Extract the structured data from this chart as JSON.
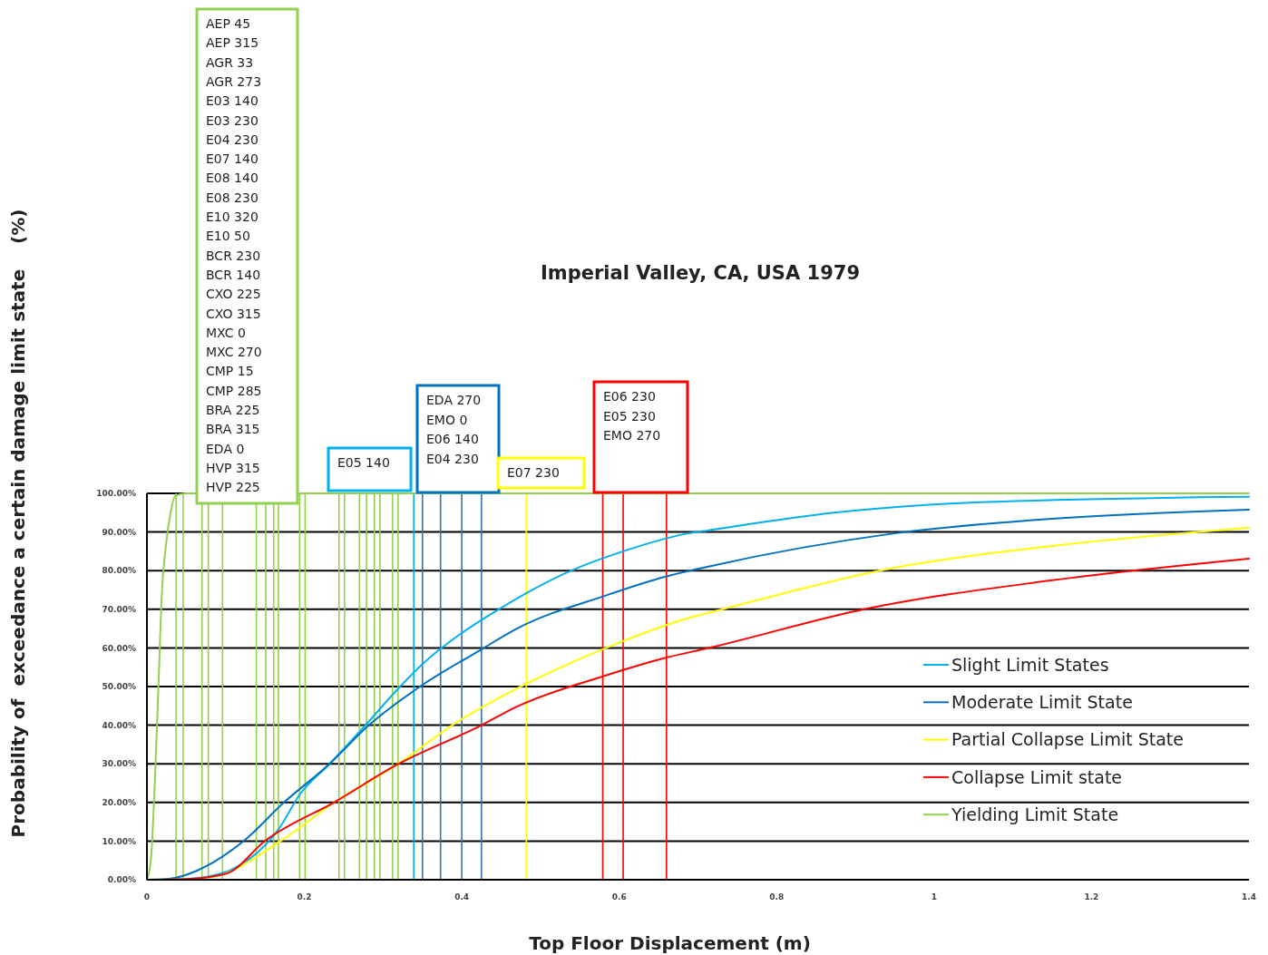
{
  "chart_data": {
    "type": "line",
    "title": "Imperial Valley, CA, USA 1979",
    "xlabel": "Top Floor Displacement  (m)",
    "ylabel": "Probability of  exceedance a certain damage limit state    (%)",
    "xlim": [
      0,
      1.4
    ],
    "xticks": [
      0,
      0.2,
      0.4,
      0.6,
      0.8,
      1,
      1.2,
      1.4
    ],
    "ylim": [
      0,
      100
    ],
    "yticks": [
      {
        "value": 0,
        "label": "0.00%"
      },
      {
        "value": 10,
        "label": "10.00%"
      },
      {
        "value": 20,
        "label": "20.00%"
      },
      {
        "value": 30,
        "label": "30.00%"
      },
      {
        "value": 40,
        "label": "40.00%"
      },
      {
        "value": 50,
        "label": "50.00%"
      },
      {
        "value": 60,
        "label": "60.00%"
      },
      {
        "value": 70,
        "label": "70.00%"
      },
      {
        "value": 80,
        "label": "80.00%"
      },
      {
        "value": 90,
        "label": "90.00%"
      },
      {
        "value": 100,
        "label": "100.00%"
      }
    ],
    "grid": "y",
    "legend": "bottom right",
    "series": [
      {
        "name": "Slight Limit States",
        "color": "#00b0f0",
        "x": [
          0,
          0.05,
          0.1,
          0.12,
          0.14,
          0.155,
          0.167,
          0.194,
          0.232,
          0.282,
          0.317,
          0.351,
          0.401,
          0.447,
          0.539,
          0.605,
          0.689,
          0.712,
          0.873,
          1.058,
          1.4
        ],
        "values": [
          0,
          0.2,
          2,
          4,
          7,
          10,
          13,
          22,
          30,
          41,
          49,
          56,
          64,
          70,
          80,
          85,
          89.7,
          90.4,
          95,
          97.7,
          99.1
        ]
      },
      {
        "name": "Moderate Limit State",
        "color": "#0070c0",
        "x": [
          0,
          0.03,
          0.063,
          0.124,
          0.174,
          0.232,
          0.282,
          0.347,
          0.424,
          0.47,
          0.582,
          0.658,
          0.712,
          0.952,
          1.15,
          1.4
        ],
        "values": [
          0,
          0.3,
          2.3,
          10.2,
          20,
          30,
          40,
          50,
          59.5,
          65,
          73.5,
          78.4,
          81,
          89.7,
          93.4,
          95.8
        ]
      },
      {
        "name": "Partial Collapse Limit State",
        "color": "#ffff00",
        "x": [
          0,
          0.05,
          0.086,
          0.171,
          0.24,
          0.317,
          0.393,
          0.47,
          0.582,
          0.689,
          0.712,
          0.938,
          1.15,
          1.4
        ],
        "values": [
          0,
          0.1,
          0.8,
          10.2,
          20.3,
          29.7,
          40.7,
          49.5,
          59.9,
          67.8,
          69,
          80.3,
          86.4,
          91.1
        ]
      },
      {
        "name": "Collapse Limit state",
        "color": "#ff0000",
        "x": [
          0,
          0.05,
          0.101,
          0.151,
          0.24,
          0.317,
          0.424,
          0.47,
          0.582,
          0.66,
          0.712,
          0.915,
          1.15,
          1.4
        ],
        "values": [
          0,
          0.2,
          1.6,
          10.2,
          20.3,
          29.7,
          39.9,
          44.8,
          52.8,
          57.5,
          59.9,
          70.2,
          77.5,
          83.1
        ]
      },
      {
        "name": "Yielding Limit State",
        "color": "#92d050",
        "x": [
          0,
          0.005,
          0.01,
          0.015,
          0.018,
          0.025,
          0.03,
          0.036,
          0.05,
          1.4
        ],
        "values": [
          0,
          5,
          25,
          52,
          70,
          88,
          95,
          99.4,
          100,
          100
        ]
      }
    ],
    "ref_lines": [
      {
        "axis": "x",
        "value": 0.037,
        "color": "#92d050"
      },
      {
        "axis": "x",
        "value": 0.046,
        "color": "#92d050"
      },
      {
        "axis": "x",
        "value": 0.07,
        "color": "#92d050"
      },
      {
        "axis": "x",
        "value": 0.078,
        "color": "#92d050"
      },
      {
        "axis": "x",
        "value": 0.096,
        "color": "#92d050"
      },
      {
        "axis": "x",
        "value": 0.139,
        "color": "#92d050"
      },
      {
        "axis": "x",
        "value": 0.151,
        "color": "#92d050"
      },
      {
        "axis": "x",
        "value": 0.161,
        "color": "#92d050"
      },
      {
        "axis": "x",
        "value": 0.167,
        "color": "#92d050"
      },
      {
        "axis": "x",
        "value": 0.194,
        "color": "#92d050"
      },
      {
        "axis": "x",
        "value": 0.201,
        "color": "#92d050"
      },
      {
        "axis": "x",
        "value": 0.244,
        "color": "#92d050"
      },
      {
        "axis": "x",
        "value": 0.251,
        "color": "#92d050"
      },
      {
        "axis": "x",
        "value": 0.27,
        "color": "#92d050"
      },
      {
        "axis": "x",
        "value": 0.279,
        "color": "#92d050"
      },
      {
        "axis": "x",
        "value": 0.289,
        "color": "#92d050"
      },
      {
        "axis": "x",
        "value": 0.296,
        "color": "#92d050"
      },
      {
        "axis": "x",
        "value": 0.312,
        "color": "#92d050"
      },
      {
        "axis": "x",
        "value": 0.319,
        "color": "#92d050"
      },
      {
        "axis": "x",
        "value": 0.339,
        "color": "#00b0f0"
      },
      {
        "axis": "x",
        "value": 0.35,
        "color": "#2e75b6"
      },
      {
        "axis": "x",
        "value": 0.373,
        "color": "#2e75b6"
      },
      {
        "axis": "x",
        "value": 0.4,
        "color": "#2e75b6"
      },
      {
        "axis": "x",
        "value": 0.425,
        "color": "#2e75b6"
      },
      {
        "axis": "x",
        "value": 0.482,
        "color": "#ffff00"
      },
      {
        "axis": "x",
        "value": 0.579,
        "color": "#ff0000"
      },
      {
        "axis": "x",
        "value": 0.605,
        "color": "#ff0000"
      },
      {
        "axis": "x",
        "value": 0.66,
        "color": "#ff0000"
      }
    ],
    "annotations": [
      "AEP 45\nAEP 315\nAGR 33\nAGR 273\nE03 140\nE03 230\nE04 230\nE07 140\nE08 140\nE08 230\nE10 320\nE10 50\nBCR 230\nBCR 140\nCXO 225\nCXO 315\nMXC 0\nMXC 270\nCMP 15\nCMP 285\nBRA 225\nBRA 315\nEDA 0\nHVP 315\nHVP 225",
      "E05 140",
      "EDA 270\nEMO 0\nE06 140\nE04 230",
      "E07 230",
      "E06 230\nE05 230\nEMO 270"
    ]
  }
}
